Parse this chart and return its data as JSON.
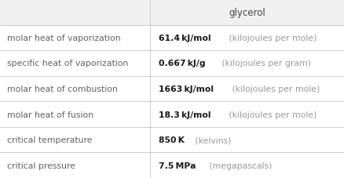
{
  "header": "glycerol",
  "rows": [
    {
      "label": "molar heat of vaporization",
      "value_bold": "61.4 kJ/mol",
      "value_light": " (kilojoules per mole)"
    },
    {
      "label": "specific heat of vaporization",
      "value_bold": "0.667 kJ/g",
      "value_light": " (kilojoules per gram)"
    },
    {
      "label": "molar heat of combustion",
      "value_bold": "1663 kJ/mol",
      "value_light": " (kilojoules per mole)"
    },
    {
      "label": "molar heat of fusion",
      "value_bold": "18.3 kJ/mol",
      "value_light": " (kilojoules per mole)"
    },
    {
      "label": "critical temperature",
      "value_bold": "850 K",
      "value_light": " (kelvins)"
    },
    {
      "label": "critical pressure",
      "value_bold": "7.5 MPa",
      "value_light": " (megapascals)"
    }
  ],
  "col_split": 0.435,
  "background_color": "#ffffff",
  "header_bg": "#f0f0f0",
  "line_color": "#cccccc",
  "label_color": "#606060",
  "value_bold_color": "#1a1a1a",
  "value_light_color": "#999999",
  "header_color": "#444444",
  "label_fontsize": 7.8,
  "value_fontsize": 7.8,
  "header_fontsize": 8.5
}
